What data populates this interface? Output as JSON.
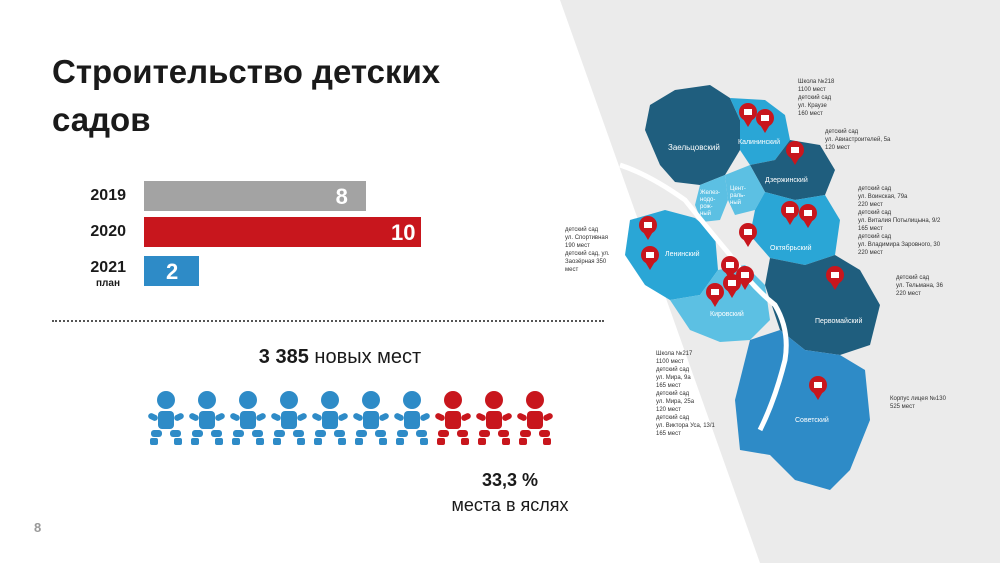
{
  "title": "Строительство детских садов",
  "page_number": "8",
  "chart_data": {
    "type": "bar",
    "orientation": "horizontal",
    "categories": [
      "2019",
      "2020",
      "2021"
    ],
    "category_sublabels": [
      "",
      "",
      "план"
    ],
    "values": [
      8,
      10,
      2
    ],
    "colors": [
      "#a3a3a3",
      "#c8161d",
      "#2e8bc7"
    ],
    "title": "",
    "xlabel": "",
    "ylabel": "",
    "xlim": [
      0,
      10
    ]
  },
  "places": {
    "number": "3 385",
    "text": "новых мест"
  },
  "nursery": {
    "percent": "33,3 %",
    "caption": "места в яслях",
    "total_icons": 10,
    "red_icons": 3
  },
  "colors": {
    "blue": "#2e8bc7",
    "red": "#c8161d",
    "gray": "#a3a3a3",
    "dark_teal": "#1f5e7e"
  },
  "map": {
    "districts": [
      "Заельцовский",
      "Калининский",
      "Дзержинский",
      "Железнодорожный",
      "Центральный",
      "Октябрьский",
      "Ленинский",
      "Кировский",
      "Первомайский",
      "Советский"
    ],
    "district_labels": {
      "zaelts": "Заельцовский",
      "kalinin": "Калининский",
      "dzerzh": "Дзержинский",
      "zhel": "Желез-\nнодо-\nрож-\nный",
      "centr": "Цент-\nраль-\nный",
      "okt": "Октябрьский",
      "lenin": "Ленинский",
      "kirov": "Кировский",
      "pervo": "Первомайский",
      "sovet": "Советский"
    },
    "annotations": {
      "a1": "Школа №218\n1100 мест\nдетский сад\nул. Краузе\n160 мест",
      "a2": "детский сад\nул. Авиастроителей, 5а\n120 мест",
      "a3": "детский сад\nул. Воинская, 79а\n220 мест\nдетский сад\nул. Виталия Потылицына, 9/2\n165 мест\nдетский сад\nул. Владимира Заровного, 30\n220 мест",
      "a4": "детский сад\nул. Тельмана, 36\n220 мест",
      "a5": "Корпус лицея №130\n525 мест",
      "a6": "детский сад\nул. Спортивная\n190 мест\nдетский сад, ул.\nЗаозёрная 350\nмест",
      "a7": "Школа №217\n1100 мест\nдетский сад\nул. Мира, 9а\n165 мест\nдетский сад\nул. Мира, 25а\n120 мест\nдетский сад\nул. Виктора Уса, 13/1\n165 мест"
    }
  }
}
